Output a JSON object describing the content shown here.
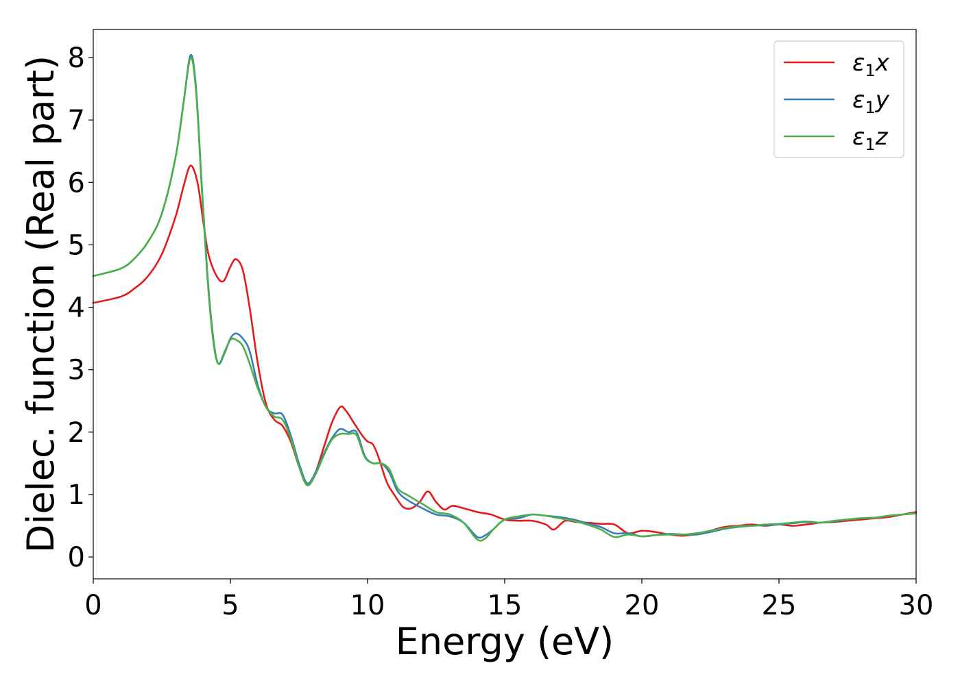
{
  "chart_data": {
    "type": "line",
    "xlabel": "Energy (eV)",
    "ylabel": "Dielec. function (Real part)",
    "xlim": [
      0,
      30
    ],
    "ylim": [
      -0.35,
      8.45
    ],
    "xticks": [
      "0",
      "5",
      "10",
      "15",
      "20",
      "25",
      "30"
    ],
    "yticks": [
      "0",
      "1",
      "2",
      "3",
      "4",
      "5",
      "6",
      "7",
      "8"
    ],
    "grid": false,
    "legend_position": "top-right",
    "series": [
      {
        "name": "ε₁x",
        "legend": {
          "base": "ε",
          "sub": "1",
          "axis": "x"
        },
        "color": "#e41a1c",
        "x": [
          0,
          1,
          1.5,
          2,
          2.5,
          3,
          3.3,
          3.55,
          3.8,
          4.0,
          4.2,
          4.5,
          4.75,
          5.0,
          5.2,
          5.45,
          5.7,
          6.0,
          6.3,
          6.6,
          6.9,
          7.2,
          7.5,
          7.8,
          8.1,
          8.4,
          8.7,
          9.0,
          9.2,
          9.5,
          9.8,
          10.0,
          10.2,
          10.4,
          10.7,
          11.0,
          11.3,
          11.6,
          11.9,
          12.2,
          12.5,
          12.8,
          13.1,
          13.5,
          14.0,
          14.5,
          15.0,
          15.5,
          16.0,
          16.5,
          16.8,
          17.2,
          17.6,
          18.0,
          18.5,
          19.0,
          19.5,
          20.0,
          20.5,
          21.0,
          21.5,
          22.0,
          22.5,
          23.0,
          23.5,
          24.0,
          24.5,
          25.0,
          25.5,
          26.0,
          26.5,
          27.0,
          27.5,
          28.0,
          28.5,
          29.0,
          29.5,
          30.0
        ],
        "y": [
          4.07,
          4.17,
          4.3,
          4.5,
          4.85,
          5.45,
          5.95,
          6.27,
          6.0,
          5.4,
          4.85,
          4.5,
          4.42,
          4.65,
          4.77,
          4.6,
          4.0,
          3.1,
          2.45,
          2.2,
          2.1,
          1.85,
          1.45,
          1.15,
          1.35,
          1.75,
          2.15,
          2.4,
          2.35,
          2.15,
          1.95,
          1.85,
          1.8,
          1.6,
          1.2,
          0.98,
          0.8,
          0.78,
          0.88,
          1.05,
          0.88,
          0.76,
          0.82,
          0.78,
          0.72,
          0.68,
          0.6,
          0.58,
          0.58,
          0.52,
          0.44,
          0.58,
          0.56,
          0.55,
          0.53,
          0.52,
          0.38,
          0.42,
          0.4,
          0.36,
          0.34,
          0.37,
          0.42,
          0.48,
          0.5,
          0.52,
          0.5,
          0.52,
          0.5,
          0.52,
          0.55,
          0.56,
          0.58,
          0.6,
          0.62,
          0.64,
          0.68,
          0.72
        ]
      },
      {
        "name": "ε₁y",
        "legend": {
          "base": "ε",
          "sub": "1",
          "axis": "y"
        },
        "color": "#377eb8",
        "x": [
          0,
          1,
          1.5,
          2,
          2.5,
          3,
          3.3,
          3.55,
          3.75,
          3.95,
          4.15,
          4.35,
          4.55,
          4.8,
          5.0,
          5.2,
          5.45,
          5.7,
          6.0,
          6.3,
          6.6,
          6.9,
          7.2,
          7.5,
          7.8,
          8.1,
          8.4,
          8.7,
          9.0,
          9.3,
          9.6,
          9.9,
          10.2,
          10.5,
          10.8,
          11.1,
          11.5,
          12.0,
          12.5,
          13.0,
          13.5,
          14.0,
          14.3,
          14.6,
          15.0,
          15.5,
          16.0,
          16.5,
          17.0,
          17.5,
          18.0,
          18.5,
          19.0,
          19.5,
          20.0,
          20.5,
          21.0,
          21.5,
          22.0,
          22.5,
          23.0,
          23.5,
          24.0,
          24.5,
          25.0,
          25.5,
          26.0,
          26.5,
          27.0,
          27.5,
          28.0,
          28.5,
          29.0,
          29.5,
          30.0
        ],
        "y": [
          4.5,
          4.62,
          4.78,
          5.05,
          5.5,
          6.4,
          7.3,
          8.04,
          7.5,
          6.0,
          4.6,
          3.6,
          3.1,
          3.28,
          3.5,
          3.58,
          3.5,
          3.3,
          2.75,
          2.4,
          2.3,
          2.28,
          1.95,
          1.5,
          1.18,
          1.35,
          1.65,
          1.9,
          2.05,
          2.0,
          2.0,
          1.62,
          1.5,
          1.5,
          1.35,
          1.05,
          0.9,
          0.78,
          0.68,
          0.65,
          0.55,
          0.32,
          0.35,
          0.45,
          0.6,
          0.62,
          0.68,
          0.66,
          0.64,
          0.6,
          0.54,
          0.48,
          0.38,
          0.38,
          0.33,
          0.35,
          0.37,
          0.36,
          0.36,
          0.4,
          0.45,
          0.48,
          0.5,
          0.51,
          0.52,
          0.54,
          0.56,
          0.55,
          0.57,
          0.6,
          0.62,
          0.63,
          0.66,
          0.68,
          0.7
        ]
      },
      {
        "name": "ε₁z",
        "legend": {
          "base": "ε",
          "sub": "1",
          "axis": "z"
        },
        "color": "#4daf4a",
        "x": [
          0,
          1,
          1.5,
          2,
          2.5,
          3,
          3.3,
          3.55,
          3.75,
          3.95,
          4.15,
          4.35,
          4.55,
          4.8,
          5.0,
          5.2,
          5.45,
          5.7,
          6.0,
          6.3,
          6.6,
          6.9,
          7.2,
          7.5,
          7.8,
          8.1,
          8.4,
          8.7,
          9.0,
          9.3,
          9.6,
          9.9,
          10.2,
          10.5,
          10.8,
          11.1,
          11.5,
          12.0,
          12.5,
          13.0,
          13.5,
          14.0,
          14.3,
          14.6,
          15.0,
          15.5,
          16.0,
          16.5,
          17.0,
          17.5,
          18.0,
          18.5,
          19.0,
          19.5,
          20.0,
          20.5,
          21.0,
          21.5,
          22.0,
          22.5,
          23.0,
          23.5,
          24.0,
          24.5,
          25.0,
          25.5,
          26.0,
          26.5,
          27.0,
          27.5,
          28.0,
          28.5,
          29.0,
          29.5,
          30.0
        ],
        "y": [
          4.5,
          4.62,
          4.78,
          5.05,
          5.5,
          6.4,
          7.3,
          8.0,
          7.45,
          5.95,
          4.55,
          3.55,
          3.1,
          3.3,
          3.48,
          3.48,
          3.38,
          3.1,
          2.7,
          2.4,
          2.25,
          2.2,
          1.9,
          1.45,
          1.15,
          1.32,
          1.62,
          1.88,
          1.97,
          1.97,
          1.95,
          1.6,
          1.5,
          1.5,
          1.4,
          1.1,
          0.98,
          0.85,
          0.72,
          0.68,
          0.55,
          0.28,
          0.3,
          0.45,
          0.6,
          0.65,
          0.68,
          0.66,
          0.62,
          0.58,
          0.52,
          0.44,
          0.32,
          0.36,
          0.33,
          0.35,
          0.36,
          0.36,
          0.38,
          0.42,
          0.46,
          0.49,
          0.5,
          0.52,
          0.53,
          0.55,
          0.57,
          0.55,
          0.58,
          0.6,
          0.62,
          0.63,
          0.66,
          0.68,
          0.7
        ]
      }
    ]
  }
}
